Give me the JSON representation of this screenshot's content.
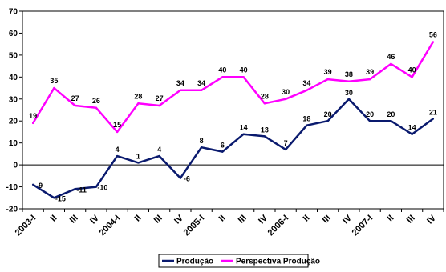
{
  "chart_data": {
    "type": "line",
    "categories": [
      "2003-I",
      "II",
      "III",
      "IV",
      "2004-I",
      "II",
      "III",
      "IV",
      "2005-I",
      "II",
      "III",
      "IV",
      "2006-I",
      "II",
      "III",
      "IV",
      "2007-I",
      "II",
      "III",
      "IV"
    ],
    "ylim": [
      -20,
      70
    ],
    "yticks": [
      -20,
      -10,
      0,
      10,
      20,
      30,
      40,
      50,
      60,
      70
    ],
    "grid": false,
    "legend_position": "bottom",
    "series": [
      {
        "name": "Produção",
        "color": "#0a1a6e",
        "values": [
          -9,
          -15,
          -11,
          -10,
          4,
          1,
          4,
          -6,
          8,
          6,
          14,
          13,
          7,
          18,
          20,
          30,
          20,
          20,
          14,
          21
        ]
      },
      {
        "name": "Perspectiva Produção",
        "color": "#ff00ff",
        "values": [
          19,
          35,
          27,
          26,
          15,
          28,
          27,
          34,
          34,
          40,
          40,
          28,
          30,
          34,
          39,
          38,
          39,
          46,
          40,
          56
        ]
      }
    ]
  }
}
